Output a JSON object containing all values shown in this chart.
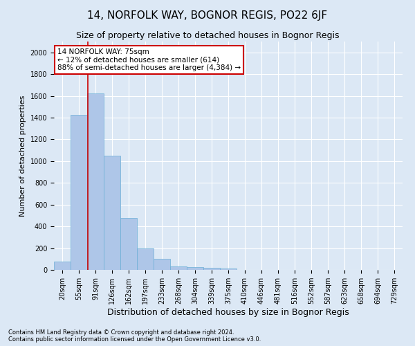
{
  "title": "14, NORFOLK WAY, BOGNOR REGIS, PO22 6JF",
  "subtitle": "Size of property relative to detached houses in Bognor Regis",
  "xlabel": "Distribution of detached houses by size in Bognor Regis",
  "ylabel": "Number of detached properties",
  "footnote": "Contains HM Land Registry data © Crown copyright and database right 2024.\nContains public sector information licensed under the Open Government Licence v3.0.",
  "categories": [
    "20sqm",
    "55sqm",
    "91sqm",
    "126sqm",
    "162sqm",
    "197sqm",
    "233sqm",
    "268sqm",
    "304sqm",
    "339sqm",
    "375sqm",
    "410sqm",
    "446sqm",
    "481sqm",
    "516sqm",
    "552sqm",
    "587sqm",
    "623sqm",
    "658sqm",
    "694sqm",
    "729sqm"
  ],
  "values": [
    75,
    1425,
    1625,
    1050,
    475,
    200,
    100,
    35,
    25,
    20,
    10,
    0,
    0,
    0,
    0,
    0,
    0,
    0,
    0,
    0,
    0
  ],
  "bar_color": "#aec6e8",
  "bar_edge_color": "#6aaed6",
  "vline_color": "#cc0000",
  "annotation_text": "14 NORFOLK WAY: 75sqm\n← 12% of detached houses are smaller (614)\n88% of semi-detached houses are larger (4,384) →",
  "annotation_box_color": "#ffffff",
  "annotation_box_edge": "#cc0000",
  "ylim": [
    0,
    2100
  ],
  "yticks": [
    0,
    200,
    400,
    600,
    800,
    1000,
    1200,
    1400,
    1600,
    1800,
    2000
  ],
  "background_color": "#dce8f5",
  "plot_bg_color": "#dce8f5",
  "title_fontsize": 11,
  "subtitle_fontsize": 9,
  "tick_fontsize": 7,
  "ylabel_fontsize": 8,
  "xlabel_fontsize": 9,
  "footnote_fontsize": 6
}
